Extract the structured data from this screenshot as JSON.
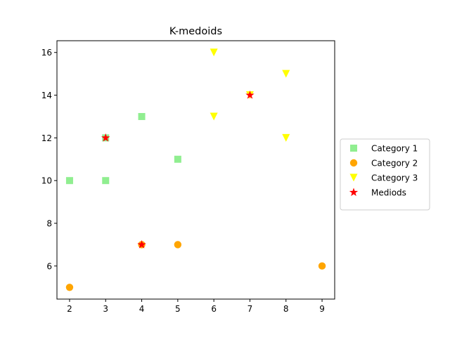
{
  "chart_data": {
    "type": "scatter",
    "title": "K-medoids",
    "xlabel": "",
    "ylabel": "",
    "xlim": [
      1.65,
      9.35
    ],
    "ylim": [
      4.45,
      16.55
    ],
    "xticks": [
      2,
      3,
      4,
      5,
      6,
      7,
      8,
      9
    ],
    "yticks": [
      6,
      8,
      10,
      12,
      14,
      16
    ],
    "grid": false,
    "legend_position": "right",
    "series": [
      {
        "name": "Category 1",
        "marker": "square",
        "color": "#90ee90",
        "points": [
          [
            2,
            10
          ],
          [
            3,
            10
          ],
          [
            3,
            12
          ],
          [
            4,
            13
          ],
          [
            5,
            11
          ]
        ]
      },
      {
        "name": "Category 2",
        "marker": "circle",
        "color": "#ffa500",
        "points": [
          [
            2,
            5
          ],
          [
            4,
            7
          ],
          [
            5,
            7
          ],
          [
            9,
            6
          ]
        ]
      },
      {
        "name": "Category 3",
        "marker": "triangle-down",
        "color": "#ffff00",
        "points": [
          [
            6,
            16
          ],
          [
            6,
            13
          ],
          [
            7,
            14
          ],
          [
            8,
            15
          ],
          [
            8,
            12
          ]
        ]
      },
      {
        "name": "Mediods",
        "marker": "star",
        "color": "#ff0000",
        "points": [
          [
            3,
            12
          ],
          [
            4,
            7
          ],
          [
            7,
            14
          ]
        ]
      }
    ]
  }
}
